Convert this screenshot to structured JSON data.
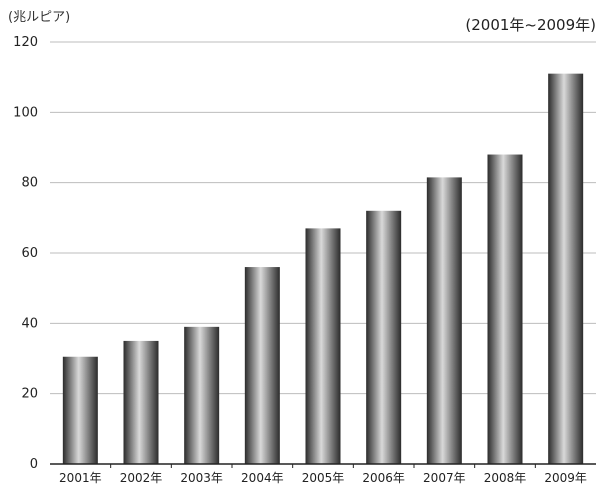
{
  "chart_data": {
    "type": "bar",
    "title": "",
    "range_label": "(2001年~2009年)",
    "ylabel": "(兆ルピア)",
    "xlabel": "",
    "categories": [
      "2001年",
      "2002年",
      "2003年",
      "2004年",
      "2005年",
      "2006年",
      "2007年",
      "2008年",
      "2009年"
    ],
    "values": [
      30.5,
      35,
      39,
      56,
      67,
      72,
      81.5,
      88,
      111
    ],
    "ylim": [
      0,
      120
    ],
    "yticks": [
      0,
      20,
      40,
      60,
      80,
      100,
      120
    ],
    "grid": true,
    "legend": "none",
    "colors": {
      "bar_dark": "#2b2b2b",
      "bar_light": "#d9d9d9",
      "grid": "#bdbdbd",
      "axis": "#222222"
    }
  }
}
